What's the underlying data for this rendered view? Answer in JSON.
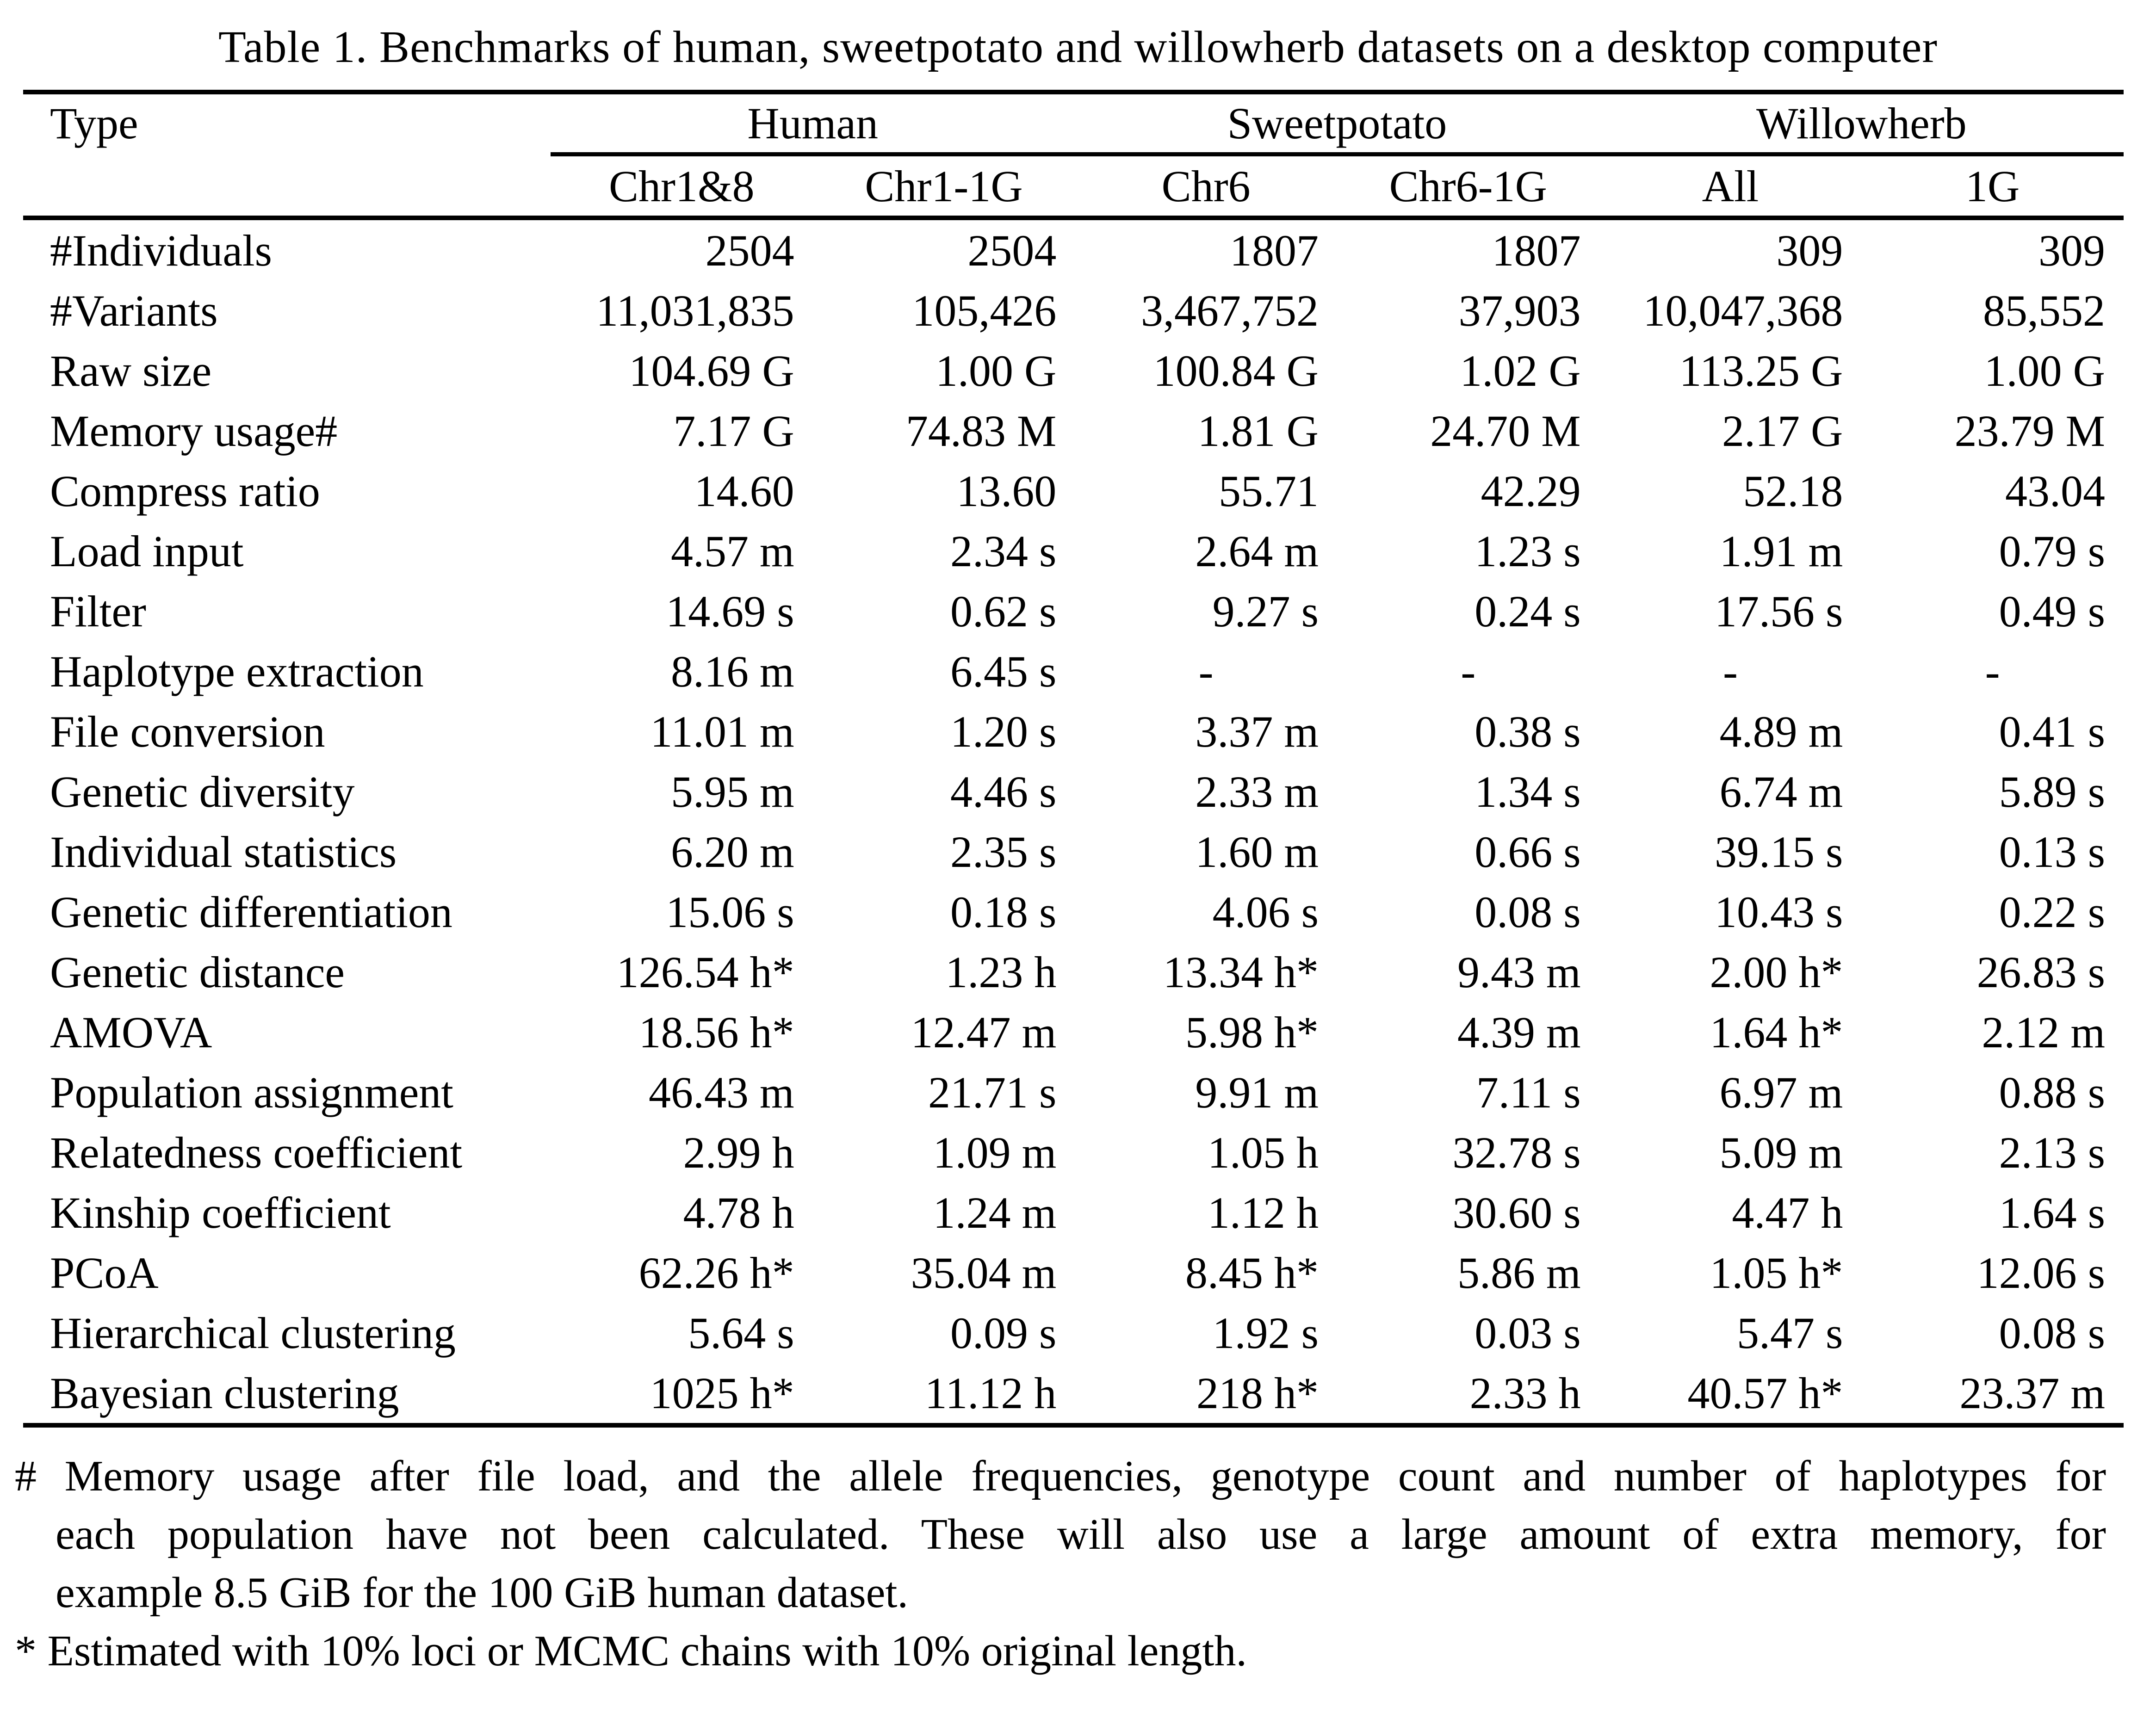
{
  "caption": "Table 1. Benchmarks of human, sweetpotato and willowherb datasets on a desktop computer",
  "table": {
    "corner_label": "Type",
    "groups": [
      {
        "label": "Human"
      },
      {
        "label": "Sweetpotato"
      },
      {
        "label": "Willowherb"
      }
    ],
    "columns": [
      "Chr1&8",
      "Chr1-1G",
      "Chr6",
      "Chr6-1G",
      "All",
      "1G"
    ],
    "rows": [
      {
        "label": "#Individuals",
        "values": [
          "2504",
          "2504",
          "1807",
          "1807",
          "309",
          "309"
        ]
      },
      {
        "label": "#Variants",
        "values": [
          "11,031,835",
          "105,426",
          "3,467,752",
          "37,903",
          "10,047,368",
          "85,552"
        ]
      },
      {
        "label": "Raw size",
        "values": [
          "104.69 G",
          "1.00 G",
          "100.84 G",
          "1.02 G",
          "113.25 G",
          "1.00 G"
        ]
      },
      {
        "label": "Memory usage#",
        "values": [
          "7.17 G",
          "74.83 M",
          "1.81 G",
          "24.70 M",
          "2.17 G",
          "23.79 M"
        ]
      },
      {
        "label": "Compress ratio",
        "values": [
          "14.60",
          "13.60",
          "55.71",
          "42.29",
          "52.18",
          "43.04"
        ]
      },
      {
        "label": "Load input",
        "values": [
          "4.57 m",
          "2.34 s",
          "2.64 m",
          "1.23 s",
          "1.91 m",
          "0.79 s"
        ]
      },
      {
        "label": "Filter",
        "values": [
          "14.69 s",
          "0.62 s",
          "9.27 s",
          "0.24 s",
          "17.56 s",
          "0.49 s"
        ]
      },
      {
        "label": "Haplotype extraction",
        "values": [
          "8.16 m",
          "6.45 s",
          "-",
          "-",
          "-",
          "-"
        ]
      },
      {
        "label": "File conversion",
        "values": [
          "11.01 m",
          "1.20 s",
          "3.37 m",
          "0.38 s",
          "4.89 m",
          "0.41 s"
        ]
      },
      {
        "label": "Genetic diversity",
        "values": [
          "5.95 m",
          "4.46 s",
          "2.33 m",
          "1.34 s",
          "6.74 m",
          "5.89 s"
        ]
      },
      {
        "label": "Individual statistics",
        "values": [
          "6.20 m",
          "2.35 s",
          "1.60 m",
          "0.66 s",
          "39.15 s",
          "0.13 s"
        ]
      },
      {
        "label": "Genetic differentiation",
        "values": [
          "15.06 s",
          "0.18 s",
          "4.06 s",
          "0.08 s",
          "10.43 s",
          "0.22 s"
        ]
      },
      {
        "label": "Genetic distance",
        "values": [
          "126.54 h*",
          "1.23 h",
          "13.34 h*",
          "9.43 m",
          "2.00 h*",
          "26.83 s"
        ]
      },
      {
        "label": "AMOVA",
        "values": [
          "18.56 h*",
          "12.47 m",
          "5.98 h*",
          "4.39 m",
          "1.64 h*",
          "2.12 m"
        ]
      },
      {
        "label": "Population assignment",
        "values": [
          "46.43 m",
          "21.71 s",
          "9.91 m",
          "7.11 s",
          "6.97 m",
          "0.88 s"
        ]
      },
      {
        "label": "Relatedness coefficient",
        "values": [
          "2.99 h",
          "1.09 m",
          "1.05 h",
          "32.78 s",
          "5.09 m",
          "2.13 s"
        ]
      },
      {
        "label": "Kinship coefficient",
        "values": [
          "4.78 h",
          "1.24 m",
          "1.12 h",
          "30.60 s",
          "4.47 h",
          "1.64 s"
        ]
      },
      {
        "label": "PCoA",
        "values": [
          "62.26 h*",
          "35.04 m",
          "8.45 h*",
          "5.86 m",
          "1.05 h*",
          "12.06 s"
        ]
      },
      {
        "label": "Hierarchical clustering",
        "values": [
          "5.64 s",
          "0.09 s",
          "1.92 s",
          "0.03 s",
          "5.47 s",
          "0.08 s"
        ]
      },
      {
        "label": "Bayesian clustering",
        "values": [
          "1025 h*",
          "11.12 h",
          "218 h*",
          "2.33 h",
          "40.57 h*",
          "23.37 m"
        ]
      }
    ]
  },
  "footnotes": {
    "hash_line1": "# Memory usage after file load, and the allele frequencies, genotype count and number of haplotypes for",
    "hash_line2": "each population have not been calculated. These will also use a large amount of extra memory, for",
    "hash_line3": "example 8.5 GiB for the 100 GiB human dataset.",
    "star_line": "* Estimated with 10% loci or MCMC chains with 10% original length."
  }
}
